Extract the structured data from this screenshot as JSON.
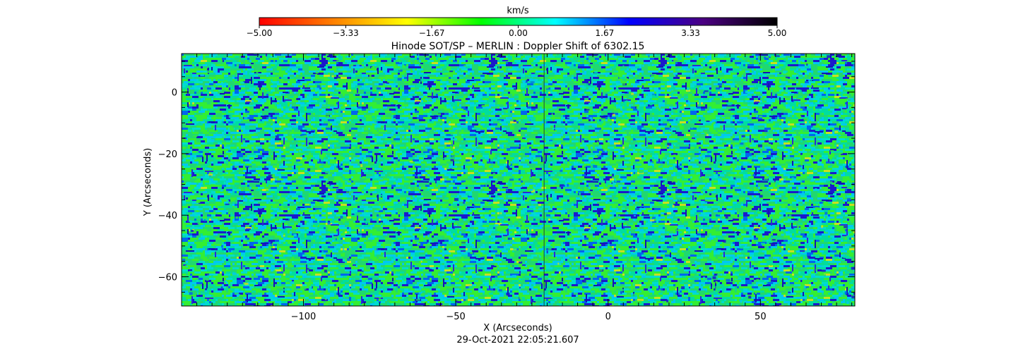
{
  "chart_data": {
    "type": "heatmap",
    "title": "Hinode SOT/SP – MERLIN : Doppler Shift of 6302.15",
    "xlabel": "X (Arcseconds)",
    "ylabel": "Y (Arcseconds)",
    "timestamp": "29-Oct-2021 22:05:21.607",
    "xlim": [
      -140,
      81
    ],
    "ylim": [
      -69.5,
      12.5
    ],
    "x_ticks": [
      -100,
      -50,
      0,
      50
    ],
    "x_tick_labels": [
      "−100",
      "−50",
      "0",
      "50"
    ],
    "y_ticks": [
      0,
      -20,
      -40,
      -60
    ],
    "y_tick_labels": [
      "0",
      "−20",
      "−40",
      "−60"
    ],
    "grid": false,
    "seam_x": -21,
    "colorbar": {
      "label": "km/s",
      "min": -5.0,
      "max": 5.0,
      "ticks": [
        -5.0,
        -3.33,
        -1.67,
        0.0,
        1.67,
        3.33,
        5.0
      ],
      "tick_labels": [
        "−5.00",
        "−3.33",
        "−1.67",
        "0.00",
        "1.67",
        "3.33",
        "5.00"
      ],
      "colors": [
        "#ff0000",
        "#ff8000",
        "#ffff00",
        "#00ff00",
        "#00ffff",
        "#0000ff",
        "#4b0082",
        "#000000"
      ]
    },
    "pixel_color_distribution": [
      {
        "color": "#33ee33",
        "weight": 0.3
      },
      {
        "color": "#20d870",
        "weight": 0.14
      },
      {
        "color": "#00dda0",
        "weight": 0.16
      },
      {
        "color": "#00ddcc",
        "weight": 0.13
      },
      {
        "color": "#00c8f0",
        "weight": 0.12
      },
      {
        "color": "#0066ee",
        "weight": 0.05
      },
      {
        "color": "#1a1acc",
        "weight": 0.08
      },
      {
        "color": "#c8e020",
        "weight": 0.02
      }
    ]
  }
}
